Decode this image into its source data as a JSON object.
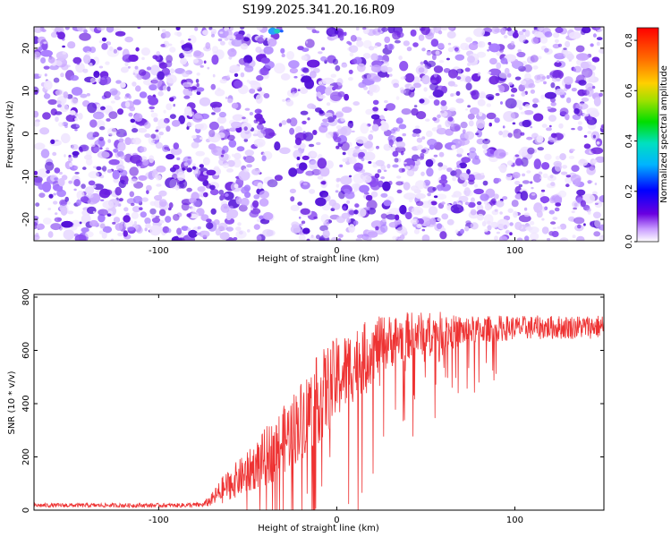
{
  "chart_data": [
    {
      "type": "heatmap",
      "title": "S199.2025.341.20.16.R09",
      "xlabel": "Height of straight line (km)",
      "ylabel": "Frequency (Hz)",
      "xlim": [
        -170,
        150
      ],
      "ylim": [
        -25,
        25
      ],
      "xticks": [
        -100,
        0,
        100
      ],
      "xtick_labels": [
        "-100",
        "0",
        "100"
      ],
      "yticks": [
        -20,
        -10,
        0,
        10,
        20
      ],
      "ytick_labels": [
        "-20",
        "-10",
        "0",
        "10",
        "20"
      ],
      "colorbar": {
        "label": "Normalized spectral amplitude",
        "range": [
          0.0,
          0.85
        ],
        "ticks": [
          0.0,
          0.2,
          0.4,
          0.6,
          0.8
        ],
        "tick_labels": [
          "0.0",
          "0.2",
          "0.4",
          "0.6",
          "0.8"
        ],
        "colormap": "rainbow (white-violet-blue-cyan-green-yellow-orange-red)"
      },
      "description_values": {
        "typical_amplitude": 0.08,
        "max_amplitude_feature": {
          "x": -36,
          "y": 24,
          "value": 0.3
        }
      },
      "grid": false
    },
    {
      "type": "line",
      "title": "",
      "xlabel": "Height of straight line (km)",
      "ylabel": "SNR (10 * v/v)",
      "xlim": [
        -170,
        150
      ],
      "ylim": [
        0,
        810
      ],
      "xticks": [
        -100,
        0,
        100
      ],
      "xtick_labels": [
        "-100",
        "0",
        "100"
      ],
      "yticks": [
        0,
        200,
        400,
        600,
        800
      ],
      "ytick_labels": [
        "0",
        "200",
        "400",
        "600",
        "800"
      ],
      "series": [
        {
          "color": "#ee3333",
          "x": [
            -170,
            -150,
            -120,
            -90,
            -75,
            -70,
            -65,
            -60,
            -55,
            -50,
            -45,
            -40,
            -35,
            -30,
            -25,
            -20,
            -15,
            -10,
            -5,
            0,
            5,
            10,
            15,
            20,
            25,
            30,
            35,
            40,
            45,
            50,
            55,
            60,
            65,
            70,
            75,
            80,
            85,
            90,
            95,
            100,
            110,
            120,
            130,
            140,
            150
          ],
          "y": [
            18,
            18,
            18,
            18,
            20,
            40,
            70,
            100,
            120,
            140,
            170,
            200,
            230,
            260,
            300,
            340,
            380,
            420,
            455,
            490,
            520,
            550,
            575,
            600,
            620,
            635,
            645,
            655,
            660,
            665,
            670,
            675,
            668,
            672,
            675,
            678,
            680,
            682,
            684,
            685,
            686,
            686,
            687,
            688,
            690
          ],
          "noise_amplitude": [
            8,
            8,
            8,
            8,
            10,
            25,
            50,
            60,
            70,
            80,
            90,
            110,
            120,
            130,
            140,
            150,
            160,
            170,
            170,
            160,
            150,
            140,
            130,
            120,
            110,
            100,
            95,
            90,
            85,
            80,
            75,
            70,
            65,
            60,
            55,
            50,
            50,
            50,
            48,
            45,
            45,
            45,
            45,
            45,
            45
          ]
        }
      ],
      "grid": false
    }
  ]
}
